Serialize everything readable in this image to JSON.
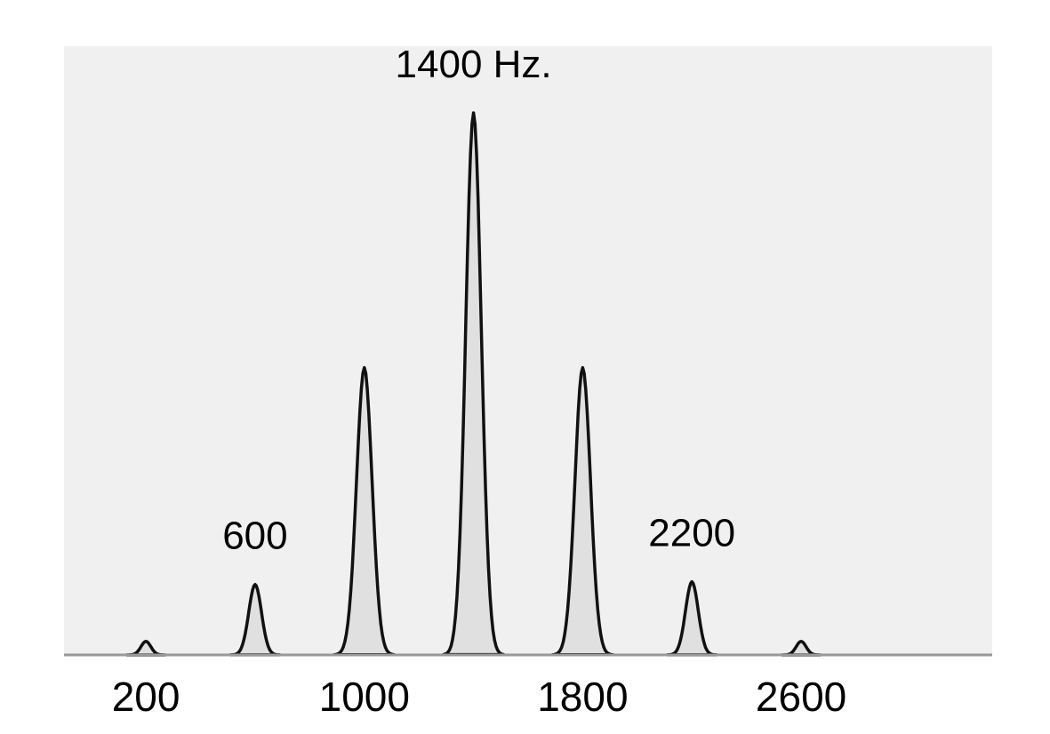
{
  "chart_data": {
    "type": "area",
    "title": "",
    "xlabel": "",
    "ylabel": "",
    "xlim": [
      -100,
      3300
    ],
    "ylim": [
      0,
      1
    ],
    "grid": false,
    "legend": "none",
    "x_ticks": [
      {
        "value": 200,
        "label": "200"
      },
      {
        "value": 1000,
        "label": "1000"
      },
      {
        "value": 1800,
        "label": "1800"
      },
      {
        "value": 2600,
        "label": "2600"
      }
    ],
    "peaks": [
      {
        "x": 200,
        "height": 0.025,
        "halfwidth": 70,
        "label": ""
      },
      {
        "x": 600,
        "height": 0.13,
        "halfwidth": 90,
        "label": "600"
      },
      {
        "x": 1000,
        "height": 0.53,
        "halfwidth": 110,
        "label": ""
      },
      {
        "x": 1400,
        "height": 1.0,
        "halfwidth": 110,
        "label": "1400 Hz."
      },
      {
        "x": 1800,
        "height": 0.53,
        "halfwidth": 110,
        "label": ""
      },
      {
        "x": 2200,
        "height": 0.135,
        "halfwidth": 90,
        "label": "2200"
      },
      {
        "x": 2600,
        "height": 0.025,
        "halfwidth": 70,
        "label": ""
      }
    ],
    "colors": {
      "plot_background": "#f0f0f0",
      "peak_fill": "#e0e0e0",
      "peak_stroke": "#111111",
      "baseline": "#999999"
    }
  }
}
